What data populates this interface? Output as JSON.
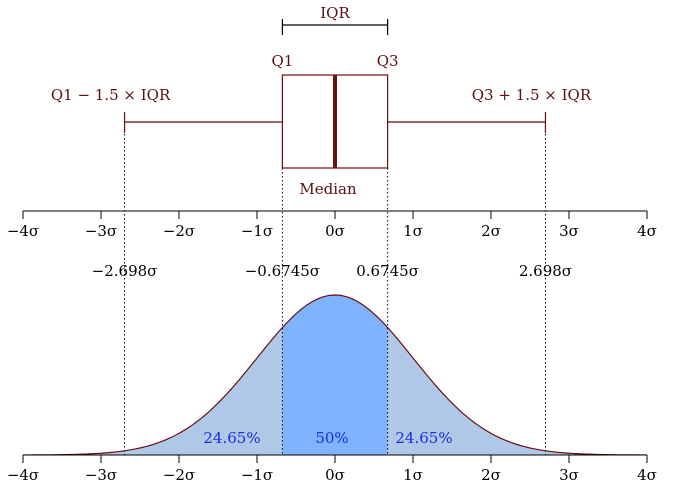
{
  "axis": {
    "ticks": [
      -4,
      -3,
      -2,
      -1,
      0,
      1,
      2,
      3,
      4
    ],
    "tick_labels": [
      "−4σ",
      "−3σ",
      "−2σ",
      "−1σ",
      "0σ",
      "1σ",
      "2σ",
      "3σ",
      "4σ"
    ]
  },
  "boxplot": {
    "q1": -0.6745,
    "median": 0,
    "q3": 0.6745,
    "lower_whisker": -2.698,
    "upper_whisker": 2.698,
    "iqr_label": "IQR",
    "q1_label": "Q1",
    "q3_label": "Q3",
    "median_label": "Median",
    "lower_whisker_label": "Q1 − 1.5 × IQR",
    "upper_whisker_label": "Q3 + 1.5 × IQR"
  },
  "boundaries": {
    "labels": [
      "−2.698σ",
      "−0.6745σ",
      "0.6745σ",
      "2.698σ"
    ]
  },
  "distribution": {
    "percent_left": "24.65%",
    "percent_center": "50%",
    "percent_right": "24.65%"
  },
  "colors": {
    "curve_line": "#6b0f0f",
    "box_line": "#6b0f0f",
    "median_line": "#6b0f0f",
    "center_fill": "#7fb2ff",
    "side_fill": "#b0c8e8",
    "percent_text": "#1a2ee0"
  }
}
